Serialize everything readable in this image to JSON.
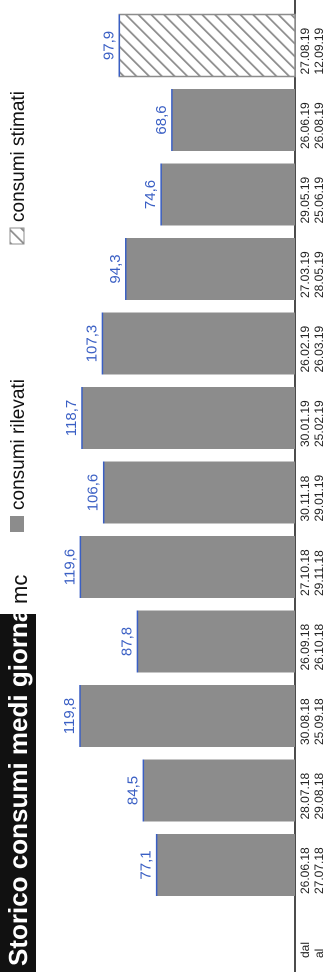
{
  "chart_data": {
    "type": "bar",
    "title": "Storico consumi medi giornalieri",
    "unit": "mc",
    "legend": [
      {
        "label": "consumi rilevati",
        "style": "solid",
        "color": "#8c8c8c"
      },
      {
        "label": "consumi stimati",
        "style": "hatched",
        "color": "#8c8c8c"
      }
    ],
    "row_labels": {
      "from": "dal",
      "to": "al"
    },
    "categories": [
      {
        "from": "26.06.18",
        "to": "27.07.18"
      },
      {
        "from": "28.07.18",
        "to": "29.08.18"
      },
      {
        "from": "30.08.18",
        "to": "25.09.18"
      },
      {
        "from": "26.09.18",
        "to": "26.10.18"
      },
      {
        "from": "27.10.18",
        "to": "29.11.18"
      },
      {
        "from": "30.11.18",
        "to": "29.01.19"
      },
      {
        "from": "30.01.19",
        "to": "25.02.19"
      },
      {
        "from": "26.02.19",
        "to": "26.03.19"
      },
      {
        "from": "27.03.19",
        "to": "28.05.19"
      },
      {
        "from": "29.05.19",
        "to": "25.06.19"
      },
      {
        "from": "26.06.19",
        "to": "26.08.19"
      },
      {
        "from": "27.08.19",
        "to": "12.09.19"
      }
    ],
    "values": [
      77.1,
      84.5,
      119.8,
      87.8,
      119.6,
      106.6,
      118.7,
      107.3,
      94.3,
      74.6,
      68.6,
      97.9
    ],
    "value_labels": [
      "77,1",
      "84,5",
      "119,8",
      "87,8",
      "119,6",
      "106,6",
      "118,7",
      "107,3",
      "94,3",
      "74,6",
      "68,6",
      "97,9"
    ],
    "estimated": [
      false,
      false,
      false,
      false,
      false,
      false,
      false,
      false,
      false,
      false,
      false,
      true
    ],
    "value_max": 119.8,
    "label_color": "#3a5fc4"
  }
}
